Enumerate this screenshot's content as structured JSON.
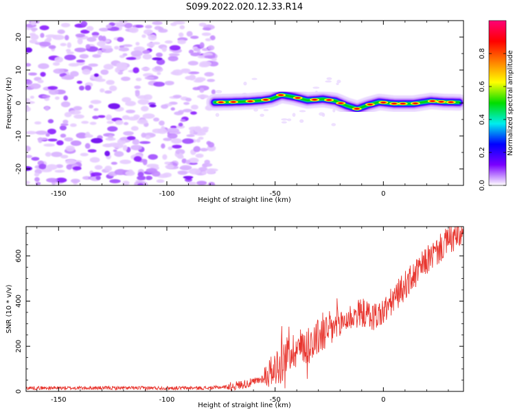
{
  "title": "S099.2022.020.12.33.R14",
  "chart_data": [
    {
      "type": "heatmap",
      "title": "S099.2022.020.12.33.R14",
      "xlabel": "Height of straight line (km)",
      "ylabel": "Frequency (Hz)",
      "xlim": [
        -165,
        37
      ],
      "ylim": [
        -25,
        25
      ],
      "xticks": [
        -150,
        -100,
        -50,
        0
      ],
      "yticks": [
        -20,
        -10,
        0,
        10,
        20
      ],
      "description_of_data": {
        "noise_region_x": [
          -165,
          -78
        ],
        "signal_start_x": -78,
        "ridge_points": [
          [
            -78,
            0.2
          ],
          [
            -70,
            0.3
          ],
          [
            -62,
            0.5
          ],
          [
            -56,
            0.8
          ],
          [
            -52,
            1.2
          ],
          [
            -47,
            2.5
          ],
          [
            -41,
            1.8
          ],
          [
            -35,
            0.8
          ],
          [
            -28,
            1.2
          ],
          [
            -22,
            0.6
          ],
          [
            -17,
            -0.8
          ],
          [
            -12,
            -1.8
          ],
          [
            -7,
            -0.6
          ],
          [
            -2,
            0.3
          ],
          [
            5,
            -0.2
          ],
          [
            14,
            -0.2
          ],
          [
            22,
            0.6
          ],
          [
            28,
            0.3
          ],
          [
            35,
            0.2
          ]
        ]
      },
      "colorbar": {
        "label": "Normalized spectral amplitude",
        "range": [
          0,
          1
        ],
        "ticks": [
          "0.0",
          "0.2",
          "0.4",
          "0.6",
          "0.8"
        ],
        "colors": [
          "#ffffff",
          "#7a00ff",
          "#0000ff",
          "#00eeee",
          "#00dd00",
          "#ffff00",
          "#ff7f00",
          "#ff0000",
          "#ff0077"
        ]
      }
    },
    {
      "type": "line",
      "xlabel": "Height of straight line (km)",
      "ylabel": "SNR (10 * v/v)",
      "xlim": [
        -165,
        37
      ],
      "ylim": [
        0,
        730
      ],
      "xticks": [
        -150,
        -100,
        -50,
        0
      ],
      "yticks": [
        0,
        200,
        400,
        600
      ],
      "color": "#e8352e",
      "series_trend": [
        [
          -165,
          15
        ],
        [
          -80,
          15
        ],
        [
          -70,
          22
        ],
        [
          -60,
          40
        ],
        [
          -55,
          60
        ],
        [
          -50,
          110
        ],
        [
          -45,
          160
        ],
        [
          -40,
          190
        ],
        [
          -35,
          210
        ],
        [
          -30,
          240
        ],
        [
          -25,
          270
        ],
        [
          -20,
          300
        ],
        [
          -15,
          330
        ],
        [
          -10,
          350
        ],
        [
          -5,
          330
        ],
        [
          0,
          350
        ],
        [
          5,
          410
        ],
        [
          10,
          470
        ],
        [
          15,
          520
        ],
        [
          20,
          580
        ],
        [
          25,
          620
        ],
        [
          30,
          670
        ],
        [
          37,
          690
        ]
      ]
    }
  ]
}
